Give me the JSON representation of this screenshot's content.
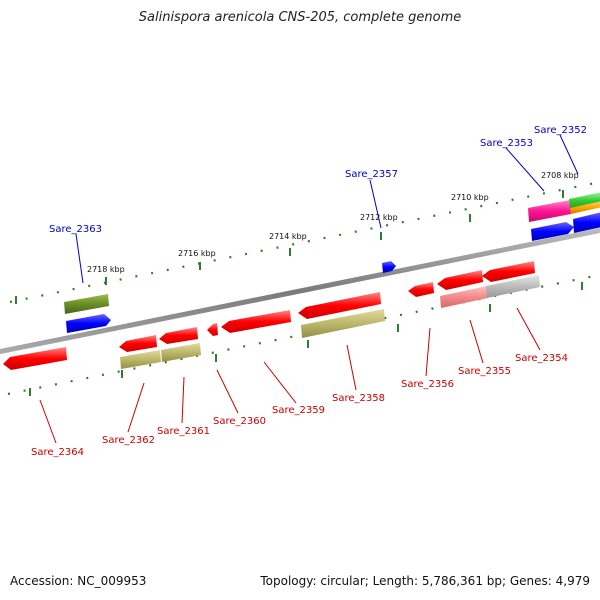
{
  "title": "Salinispora arenicola CNS-205, complete genome",
  "footer": {
    "accession": "Accession: NC_009953",
    "summary": "Topology: circular; Length: 5,786,361 bp; Genes: 4,979"
  },
  "ruler_labels": [
    "2718 kbp",
    "2716 kbp",
    "2714 kbp",
    "2712 kbp",
    "2710 kbp",
    "2708 kbp"
  ],
  "gene_labels_top": [
    "Sare_2363",
    "Sare_2357",
    "Sare_2353",
    "Sare_2352"
  ],
  "gene_labels_bottom": [
    "Sare_2364",
    "Sare_2362",
    "Sare_2361",
    "Sare_2360",
    "Sare_2359",
    "Sare_2358",
    "Sare_2356",
    "Sare_2355",
    "Sare_2354"
  ],
  "colors": {
    "cds": "#ff0000",
    "cds_light": "#ff8a8a",
    "blue": "#0000ff",
    "olive": "#6b8e23",
    "khaki": "#bdb76b",
    "magenta": "#ff1493",
    "green": "#32cd32",
    "orange": "#ffa500",
    "grey": "#bbbbbb",
    "backbone": "#888888",
    "ruler": "#2e7d32"
  }
}
